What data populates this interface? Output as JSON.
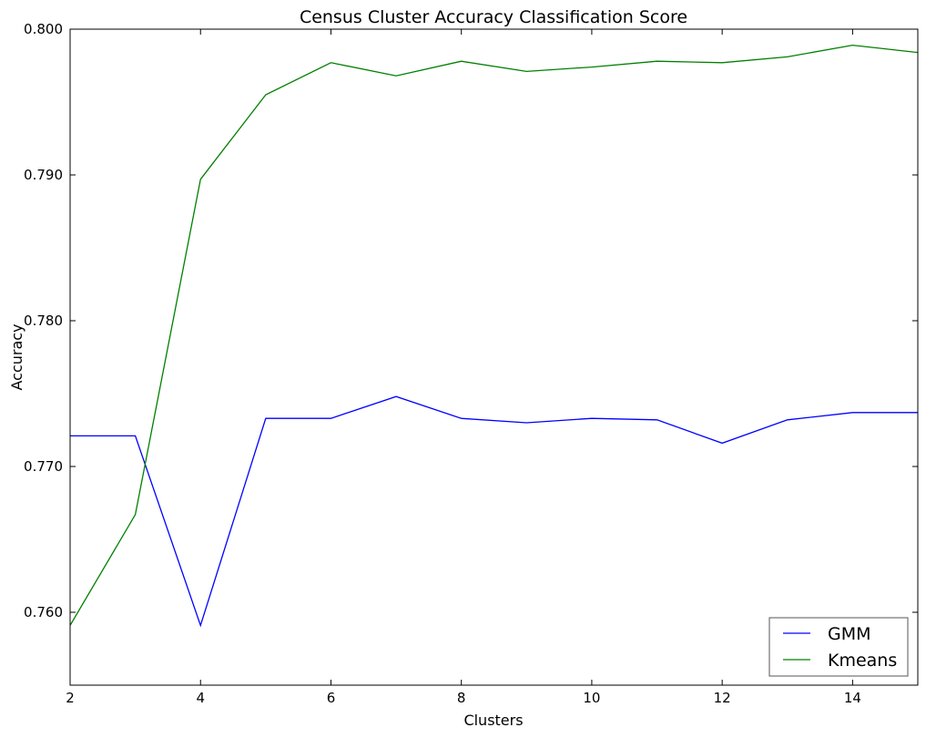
{
  "chart_data": {
    "type": "line",
    "title": "Census  Cluster Accuracy Classification Score",
    "xlabel": "Clusters",
    "ylabel": "Accuracy",
    "xlim": [
      2,
      15
    ],
    "ylim": [
      0.755,
      0.8
    ],
    "xticks": [
      2,
      4,
      6,
      8,
      10,
      12,
      14
    ],
    "yticks": [
      0.76,
      0.77,
      0.78,
      0.79,
      0.8
    ],
    "ytick_labels": [
      "0.760",
      "0.770",
      "0.780",
      "0.790",
      "0.800"
    ],
    "x": [
      2,
      3,
      4,
      5,
      6,
      7,
      8,
      9,
      10,
      11,
      12,
      13,
      14,
      15
    ],
    "series": [
      {
        "name": "GMM",
        "color": "#0000ff",
        "values": [
          0.7721,
          0.7721,
          0.7591,
          0.7733,
          0.7733,
          0.7748,
          0.7733,
          0.773,
          0.7733,
          0.7732,
          0.7716,
          0.7732,
          0.7737,
          0.7737
        ]
      },
      {
        "name": "Kmeans",
        "color": "#008000",
        "values": [
          0.7591,
          0.7667,
          0.7897,
          0.7955,
          0.7977,
          0.7968,
          0.7978,
          0.7971,
          0.7974,
          0.7978,
          0.7977,
          0.7981,
          0.7989,
          0.7984
        ]
      }
    ],
    "legend_position": "lower-right",
    "grid": false
  }
}
